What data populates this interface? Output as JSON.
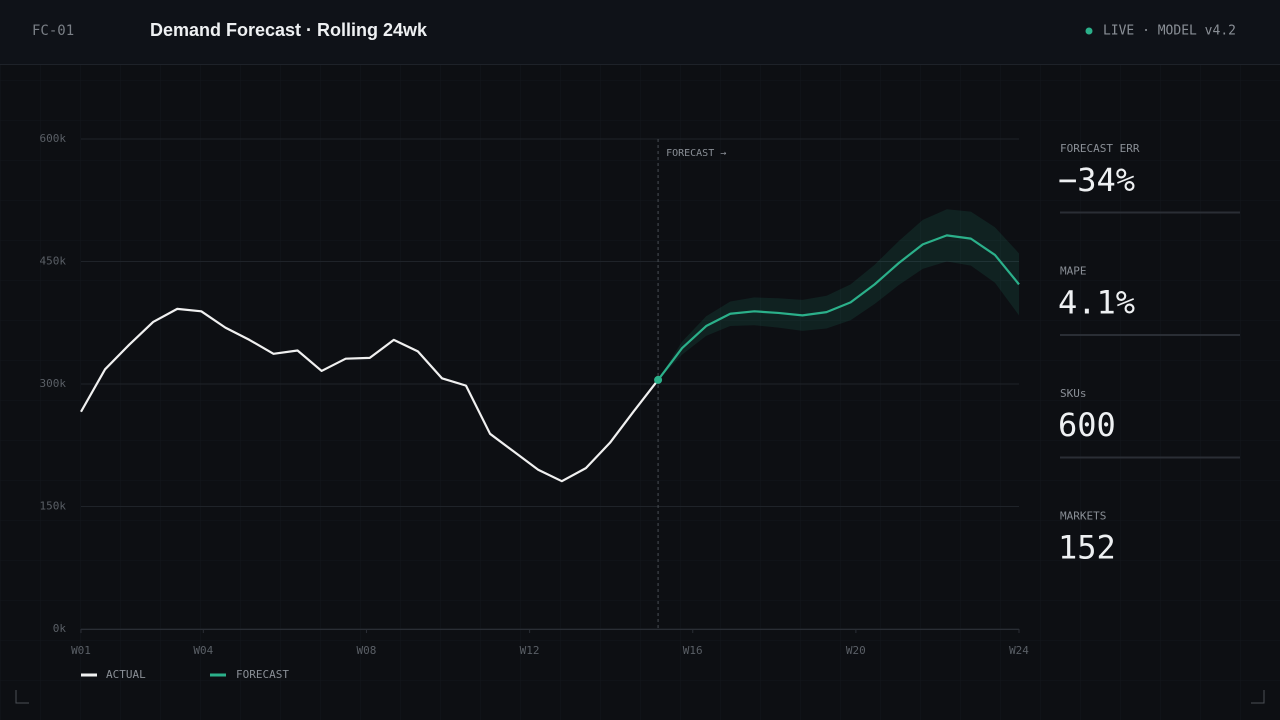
{
  "header": {
    "id": "FC-01",
    "status": "LIVE · MODEL v4.2"
  },
  "chart_data": {
    "type": "line",
    "title": "Demand Forecast · Rolling 24wk",
    "annotation": "FORECAST →",
    "x": [
      1.0,
      1.59,
      2.18,
      2.77,
      3.36,
      3.95,
      4.54,
      5.13,
      5.72,
      6.31,
      6.9,
      7.49,
      8.08,
      8.67,
      9.26,
      9.85,
      10.44,
      11.03,
      11.62,
      12.21,
      12.79,
      13.38,
      13.97,
      14.56,
      15.15,
      15.74,
      16.33,
      16.92,
      17.51,
      18.1,
      18.69,
      19.28,
      19.87,
      20.46,
      21.05,
      21.64,
      22.23,
      22.82,
      23.41,
      24.0
    ],
    "xlim": [
      1,
      24
    ],
    "xticks": [
      {
        "value": 1,
        "label": "W01"
      },
      {
        "value": 4,
        "label": "W04"
      },
      {
        "value": 8,
        "label": "W08"
      },
      {
        "value": 12,
        "label": "W12"
      },
      {
        "value": 16,
        "label": "W16"
      },
      {
        "value": 20,
        "label": "W20"
      },
      {
        "value": 24,
        "label": "W24"
      }
    ],
    "ylim": [
      0,
      600
    ],
    "yticks": [
      {
        "value": 0,
        "label": "0k"
      },
      {
        "value": 150,
        "label": "150k"
      },
      {
        "value": 300,
        "label": "300k"
      },
      {
        "value": 450,
        "label": "450k"
      },
      {
        "value": 600,
        "label": "600k"
      }
    ],
    "grid": true,
    "series": [
      {
        "name": "ACTUAL",
        "color": "#f0f0f0",
        "values": [
          266,
          318,
          348,
          376,
          392,
          389,
          369,
          354,
          337,
          341,
          316,
          331,
          332,
          354,
          340,
          307,
          298,
          239,
          217,
          195,
          181,
          197,
          228,
          267,
          305,
          null,
          null,
          null,
          null,
          null,
          null,
          null,
          null,
          null,
          null,
          null,
          null,
          null,
          null,
          null
        ]
      },
      {
        "name": "FORECAST",
        "color": "#2bb08a",
        "values": [
          null,
          null,
          null,
          null,
          null,
          null,
          null,
          null,
          null,
          null,
          null,
          null,
          null,
          null,
          null,
          null,
          null,
          null,
          null,
          null,
          null,
          null,
          null,
          null,
          305,
          344,
          371,
          386,
          389,
          387,
          384,
          388,
          400,
          422,
          448,
          471,
          482,
          478,
          458,
          422
        ],
        "upper": [
          null,
          null,
          null,
          null,
          null,
          null,
          null,
          null,
          null,
          null,
          null,
          null,
          null,
          null,
          null,
          null,
          null,
          null,
          null,
          null,
          null,
          null,
          null,
          null,
          305,
          352,
          383,
          401,
          406,
          405,
          403,
          408,
          422,
          446,
          475,
          501,
          514,
          511,
          492,
          460
        ],
        "lower": [
          null,
          null,
          null,
          null,
          null,
          null,
          null,
          null,
          null,
          null,
          null,
          null,
          null,
          null,
          null,
          null,
          null,
          null,
          null,
          null,
          null,
          null,
          null,
          null,
          305,
          336,
          359,
          371,
          372,
          369,
          365,
          368,
          378,
          398,
          421,
          441,
          450,
          445,
          424,
          384
        ]
      }
    ]
  },
  "stats": [
    {
      "label": "FORECAST ERR",
      "value": "−34%"
    },
    {
      "label": "MAPE",
      "value": "4.1%"
    },
    {
      "label": "SKUs",
      "value": "600"
    },
    {
      "label": "MARKETS",
      "value": "152"
    }
  ]
}
